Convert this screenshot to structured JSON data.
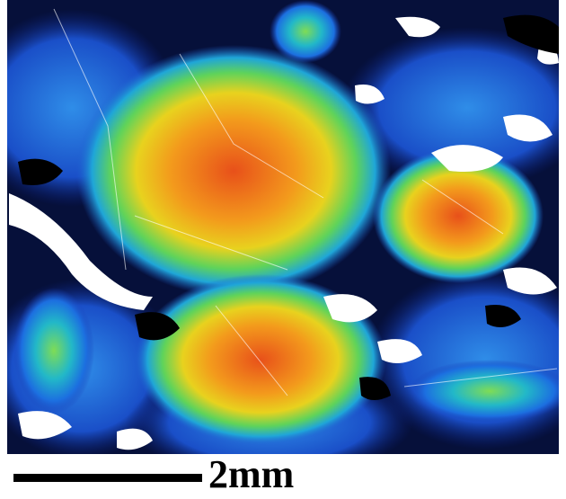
{
  "scale_bar": {
    "label": "2mm"
  }
}
